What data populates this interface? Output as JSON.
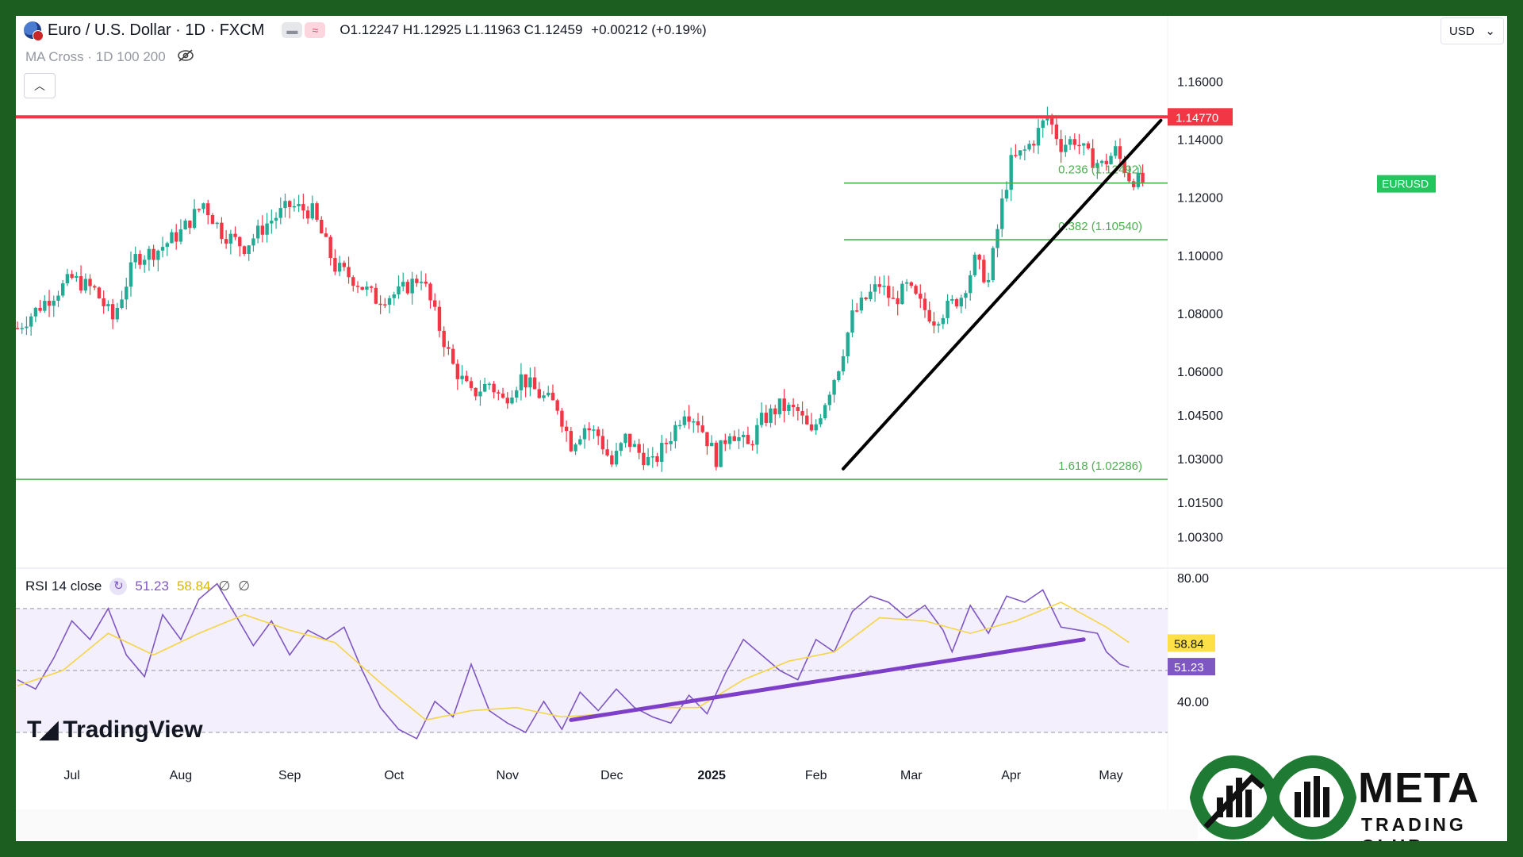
{
  "header": {
    "symbol_title": "Euro / U.S. Dollar · 1D · FXCM",
    "ohlc": {
      "o": "O1.12247",
      "h": "H1.12925",
      "l": "L1.11963",
      "c": "C1.12459",
      "change": "+0.00212 (+0.19%)"
    },
    "indicator": "MA Cross · 1D 100 200",
    "currency": "USD",
    "collapse_icon": "chevron-up-icon",
    "visibility_icon": "eye-off-icon"
  },
  "rsi_header": {
    "label": "RSI 14 close",
    "rsi_value": "51.23",
    "ma_value": "58.84",
    "extra1": "∅",
    "extra2": "∅"
  },
  "logos": {
    "tradingview": "TradingView",
    "brand_line1": "META",
    "brand_line2": "TRADING CLUB"
  },
  "colors": {
    "up": "#22ab94",
    "down": "#f23645",
    "resistance": "#f23645",
    "fib": "#4caf50",
    "rsi": "#7e57c2",
    "rsi_ma": "#f5d547",
    "trendline": "#000000",
    "rsi_trend": "#7e3fc8",
    "frame": "#1b5e20"
  },
  "chart_data": [
    {
      "type": "candlestick",
      "symbol": "EURUSD",
      "timeframe": "1D",
      "xlabels": [
        "Jul",
        "Aug",
        "Sep",
        "Oct",
        "Nov",
        "Dec",
        "2025",
        "Feb",
        "Mar",
        "Apr",
        "May"
      ],
      "y_ticks": [
        "1.16000",
        "1.14000",
        "1.12000",
        "1.10000",
        "1.08000",
        "1.06000",
        "1.04500",
        "1.03000",
        "1.01500",
        "1.00300"
      ],
      "ylim": [
        0.995,
        1.165
      ],
      "series": [
        {
          "name": "EURUSD",
          "close_path": [
            [
              0,
              1.075
            ],
            [
              6,
              1.084
            ],
            [
              12,
              1.092
            ],
            [
              17,
              1.088
            ],
            [
              21,
              1.078
            ],
            [
              26,
              1.099
            ],
            [
              31,
              1.102
            ],
            [
              36,
              1.108
            ],
            [
              41,
              1.118
            ],
            [
              45,
              1.108
            ],
            [
              50,
              1.103
            ],
            [
              55,
              1.111
            ],
            [
              60,
              1.117
            ],
            [
              65,
              1.115
            ],
            [
              70,
              1.096
            ],
            [
              74,
              1.092
            ],
            [
              79,
              1.085
            ],
            [
              84,
              1.087
            ],
            [
              89,
              1.093
            ],
            [
              93,
              1.075
            ],
            [
              96,
              1.062
            ],
            [
              100,
              1.052
            ],
            [
              104,
              1.056
            ],
            [
              107,
              1.05
            ],
            [
              111,
              1.058
            ],
            [
              115,
              1.052
            ],
            [
              119,
              1.048
            ],
            [
              122,
              1.035
            ],
            [
              125,
              1.041
            ],
            [
              128,
              1.038
            ],
            [
              131,
              1.028
            ],
            [
              134,
              1.037
            ],
            [
              137,
              1.032
            ],
            [
              140,
              1.028
            ],
            [
              144,
              1.038
            ],
            [
              147,
              1.047
            ],
            [
              150,
              1.043
            ],
            [
              154,
              1.03
            ],
            [
              157,
              1.04
            ],
            [
              161,
              1.034
            ],
            [
              164,
              1.043
            ],
            [
              168,
              1.048
            ],
            [
              172,
              1.046
            ],
            [
              175,
              1.038
            ],
            [
              178,
              1.05
            ],
            [
              181,
              1.062
            ],
            [
              184,
              1.079
            ],
            [
              187,
              1.085
            ],
            [
              190,
              1.09
            ],
            [
              193,
              1.084
            ],
            [
              196,
              1.089
            ],
            [
              199,
              1.083
            ],
            [
              202,
              1.078
            ],
            [
              205,
              1.082
            ],
            [
              208,
              1.086
            ],
            [
              211,
              1.098
            ],
            [
              214,
              1.091
            ],
            [
              217,
              1.118
            ],
            [
              219,
              1.132
            ],
            [
              222,
              1.136
            ],
            [
              224,
              1.14
            ],
            [
              227,
              1.148
            ],
            [
              230,
              1.138
            ],
            [
              233,
              1.14
            ],
            [
              236,
              1.134
            ],
            [
              239,
              1.131
            ],
            [
              242,
              1.136
            ],
            [
              245,
              1.127
            ],
            [
              248,
              1.125
            ]
          ]
        }
      ],
      "horizontal_levels": [
        {
          "label": "1.14770",
          "value": 1.1477
        },
        {
          "label": "0.236 (1.12492)",
          "value": 1.12492
        },
        {
          "label": "0.382 (1.10540)",
          "value": 1.1054
        },
        {
          "label": "1.618 (1.02286)",
          "value": 1.02286
        }
      ],
      "price_tag": "EURUSD",
      "trendline": {
        "from": [
          182,
          1.0265
        ],
        "to": [
          252,
          1.1465
        ]
      }
    },
    {
      "type": "line",
      "name": "RSI 14 close",
      "y_ticks": [
        "80.00",
        "40.00"
      ],
      "ylim": [
        20,
        82
      ],
      "bands": {
        "upper": 70,
        "middle": 50,
        "lower": 30
      },
      "series": [
        {
          "name": "RSI",
          "values": [
            [
              0,
              47
            ],
            [
              4,
              44
            ],
            [
              8,
              54
            ],
            [
              12,
              66
            ],
            [
              16,
              60
            ],
            [
              20,
              70
            ],
            [
              24,
              55
            ],
            [
              28,
              48
            ],
            [
              32,
              68
            ],
            [
              36,
              60
            ],
            [
              40,
              73
            ],
            [
              44,
              78
            ],
            [
              48,
              68
            ],
            [
              52,
              58
            ],
            [
              56,
              66
            ],
            [
              60,
              55
            ],
            [
              64,
              63
            ],
            [
              68,
              60
            ],
            [
              72,
              64
            ],
            [
              76,
              50
            ],
            [
              80,
              38
            ],
            [
              84,
              31
            ],
            [
              88,
              28
            ],
            [
              92,
              40
            ],
            [
              96,
              35
            ],
            [
              100,
              52
            ],
            [
              104,
              37
            ],
            [
              108,
              33
            ],
            [
              112,
              30
            ],
            [
              116,
              40
            ],
            [
              120,
              31
            ],
            [
              124,
              43
            ],
            [
              128,
              37
            ],
            [
              132,
              44
            ],
            [
              136,
              38
            ],
            [
              140,
              35
            ],
            [
              144,
              33
            ],
            [
              148,
              42
            ],
            [
              152,
              36
            ],
            [
              156,
              49
            ],
            [
              160,
              60
            ],
            [
              164,
              55
            ],
            [
              168,
              50
            ],
            [
              172,
              47
            ],
            [
              176,
              60
            ],
            [
              180,
              56
            ],
            [
              184,
              69
            ],
            [
              188,
              74
            ],
            [
              192,
              72
            ],
            [
              196,
              67
            ],
            [
              200,
              71
            ],
            [
              204,
              63
            ],
            [
              206,
              56
            ],
            [
              210,
              71
            ],
            [
              214,
              62
            ],
            [
              218,
              74
            ],
            [
              222,
              72
            ],
            [
              226,
              76
            ],
            [
              230,
              64
            ],
            [
              234,
              63
            ],
            [
              238,
              62
            ],
            [
              240,
              56
            ],
            [
              243,
              52
            ],
            [
              245,
              51
            ]
          ]
        },
        {
          "name": "RSI-based MA",
          "values": [
            [
              0,
              45
            ],
            [
              10,
              50
            ],
            [
              20,
              62
            ],
            [
              30,
              55
            ],
            [
              40,
              62
            ],
            [
              50,
              68
            ],
            [
              60,
              63
            ],
            [
              70,
              59
            ],
            [
              80,
              46
            ],
            [
              90,
              34
            ],
            [
              100,
              37
            ],
            [
              110,
              38
            ],
            [
              120,
              35
            ],
            [
              130,
              36
            ],
            [
              140,
              38
            ],
            [
              150,
              38
            ],
            [
              160,
              47
            ],
            [
              170,
              53
            ],
            [
              180,
              56
            ],
            [
              190,
              67
            ],
            [
              200,
              66
            ],
            [
              210,
              62
            ],
            [
              220,
              66
            ],
            [
              230,
              72
            ],
            [
              240,
              64
            ],
            [
              245,
              59
            ]
          ]
        }
      ],
      "last_values": {
        "ma": "58.84",
        "rsi": "51.23"
      },
      "trendline": {
        "from": [
          122,
          34
        ],
        "to": [
          235,
          60
        ]
      }
    }
  ]
}
